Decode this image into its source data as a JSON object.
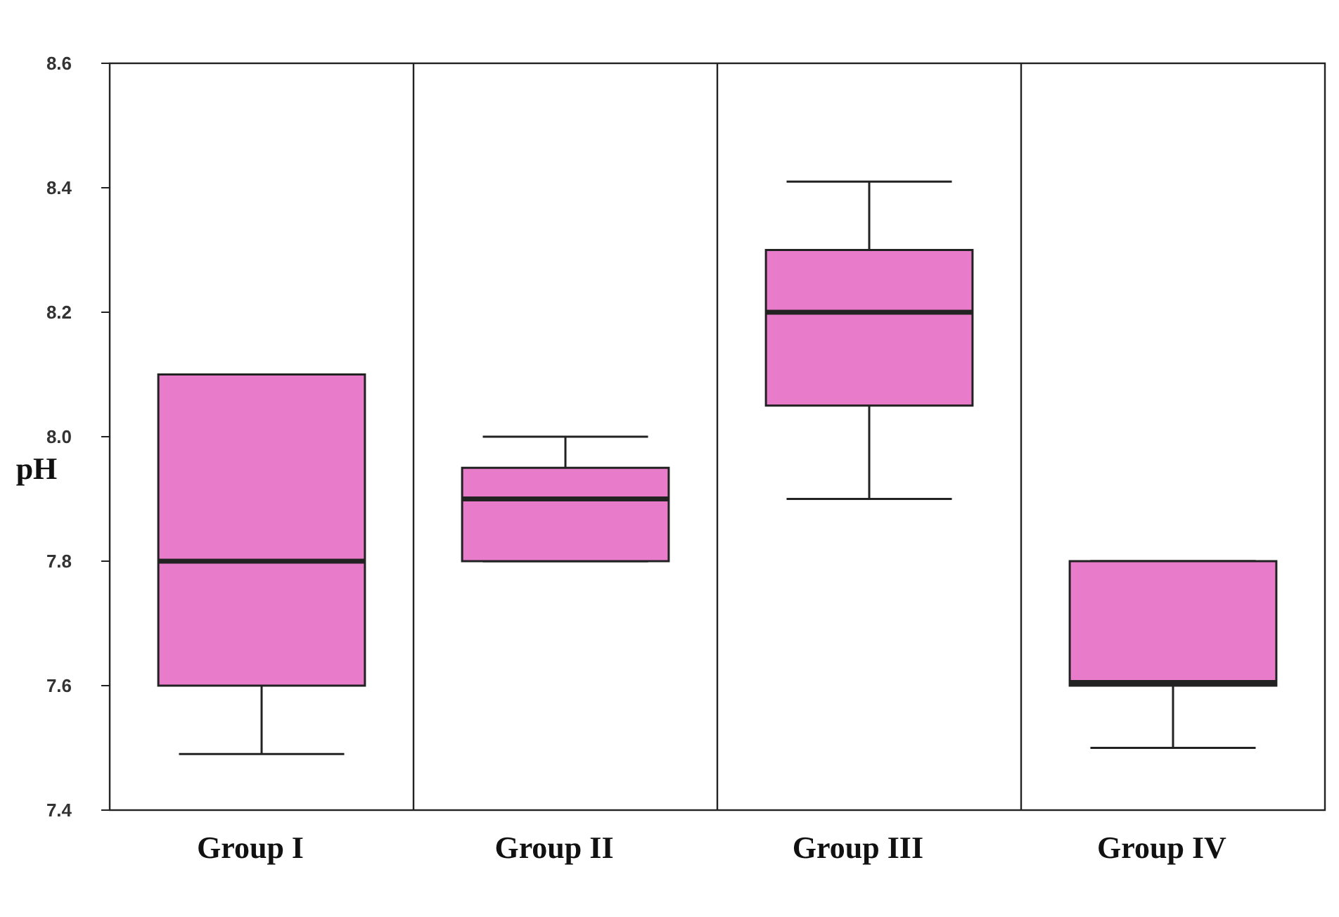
{
  "chart_data": {
    "type": "box",
    "ylabel": "pH",
    "categories": [
      "Group I",
      "Group II",
      "Group III",
      "Group IV"
    ],
    "boxes": [
      {
        "low": 7.49,
        "q1": 7.6,
        "median": 7.8,
        "q3": 8.1,
        "high": 8.1
      },
      {
        "low": 7.8,
        "q1": 7.8,
        "median": 7.9,
        "q3": 7.95,
        "high": 8.0
      },
      {
        "low": 7.9,
        "q1": 8.05,
        "median": 8.2,
        "q3": 8.3,
        "high": 8.41
      },
      {
        "low": 7.5,
        "q1": 7.6,
        "median": 7.605,
        "q3": 7.8,
        "high": 7.8
      }
    ],
    "color": "#e87ccb",
    "ylim": [
      7.4,
      8.6
    ],
    "yticks": [
      7.4,
      7.6,
      7.8,
      {
        "value": 8,
        "label": "8.0"
      },
      8.2,
      8.4,
      8.6
    ],
    "grid": "x"
  }
}
